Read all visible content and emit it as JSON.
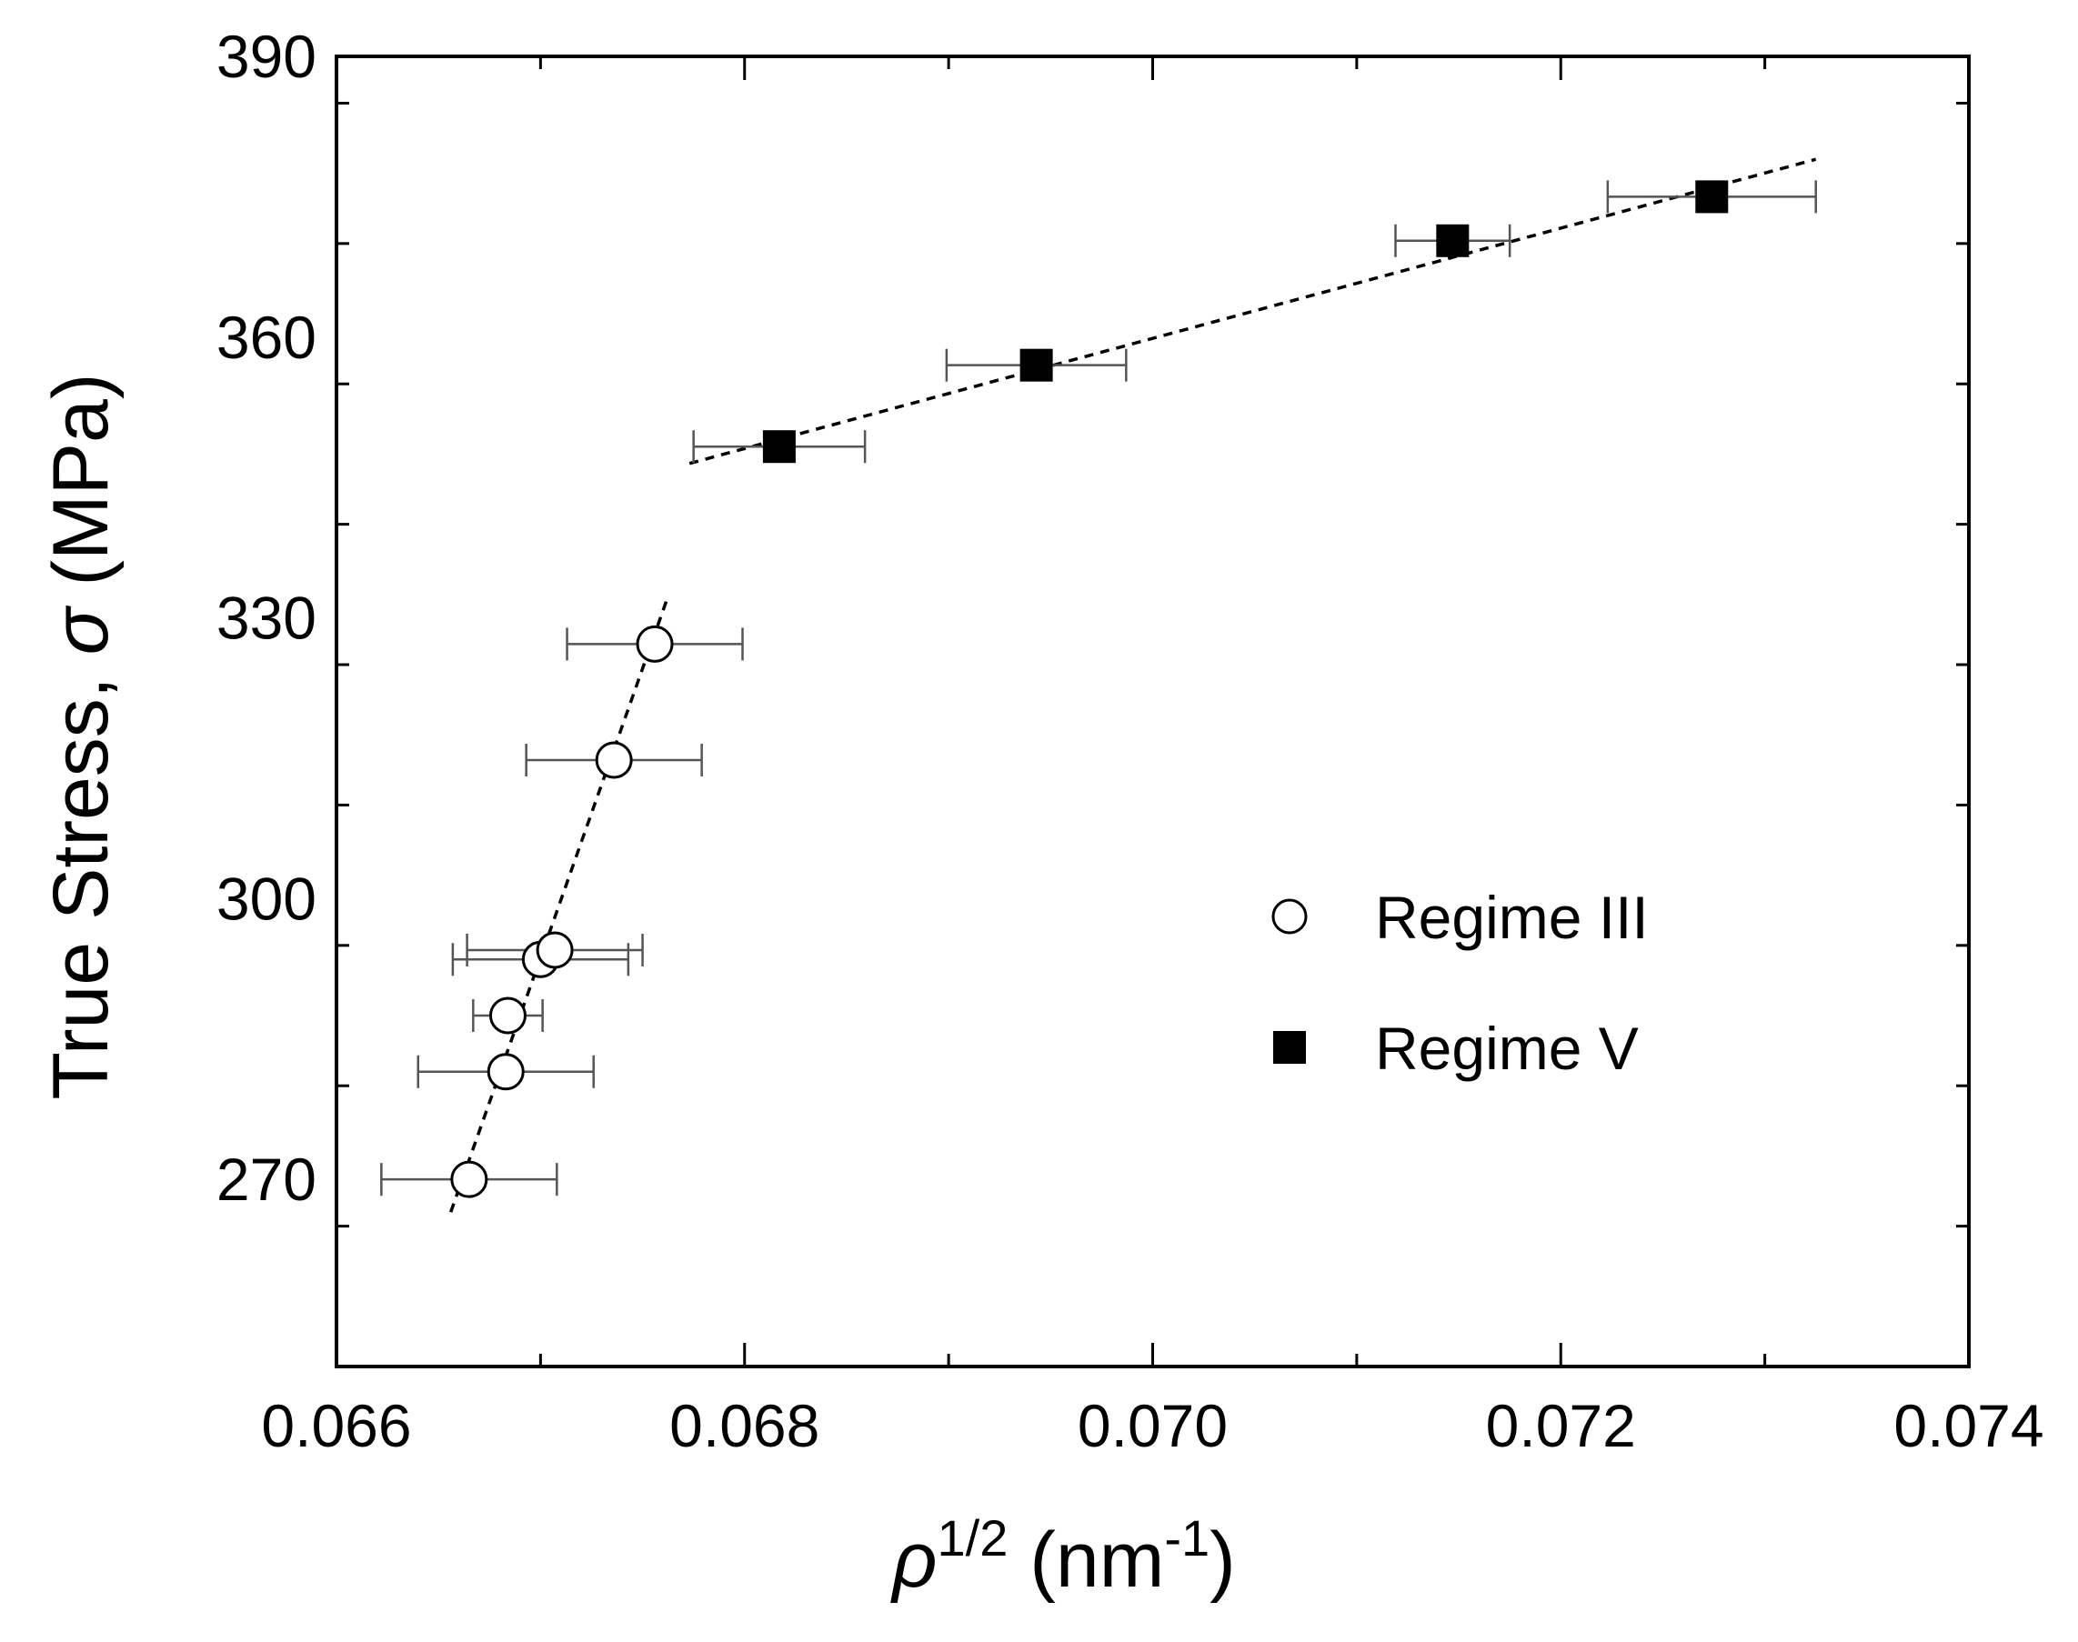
{
  "chart_data": {
    "type": "scatter",
    "title": "",
    "xlabel_symbol": "ρ",
    "xlabel_sup": "1/2",
    "xlabel_unit_open": " (nm",
    "xlabel_unit_sup": "-1",
    "xlabel_unit_close": ")",
    "ylabel_text": "True Stress, ",
    "ylabel_symbol": "σ",
    "ylabel_unit": " (MPa)",
    "xlim": [
      0.066,
      0.074
    ],
    "ylim": [
      250,
      390
    ],
    "x_ticks": [
      0.066,
      0.068,
      0.07,
      0.072,
      0.074
    ],
    "x_tick_labels": [
      "0.066",
      "0.068",
      "0.070",
      "0.072",
      "0.074"
    ],
    "y_ticks": [
      270,
      300,
      330,
      360,
      390
    ],
    "y_tick_labels": [
      "270",
      "300",
      "330",
      "360",
      "390"
    ],
    "legend_position": "center-right",
    "series": [
      {
        "name": "Regime III",
        "marker": "open-circle",
        "points": [
          {
            "x": 0.06665,
            "y": 270.0,
            "xerr": 0.00043
          },
          {
            "x": 0.06683,
            "y": 281.5,
            "xerr": 0.00043
          },
          {
            "x": 0.06684,
            "y": 287.5,
            "xerr": 0.00017
          },
          {
            "x": 0.067,
            "y": 293.5,
            "xerr": 0.00043
          },
          {
            "x": 0.06707,
            "y": 294.5,
            "xerr": 0.00043
          },
          {
            "x": 0.06736,
            "y": 314.8,
            "xerr": 0.00043
          },
          {
            "x": 0.06756,
            "y": 327.2,
            "xerr": 0.00043
          }
        ],
        "fit": {
          "x": [
            0.06656,
            0.06762
          ],
          "y": [
            266.5,
            332.0
          ]
        }
      },
      {
        "name": "Regime V",
        "marker": "filled-square",
        "points": [
          {
            "x": 0.06817,
            "y": 348.3,
            "xerr": 0.00042
          },
          {
            "x": 0.06943,
            "y": 357.0,
            "xerr": 0.00044
          },
          {
            "x": 0.07147,
            "y": 370.3,
            "xerr": 0.00028
          },
          {
            "x": 0.07274,
            "y": 375.0,
            "xerr": 0.00051
          }
        ],
        "fit": {
          "x": [
            0.06773,
            0.07325
          ],
          "y": [
            346.5,
            379.0
          ]
        }
      }
    ]
  }
}
